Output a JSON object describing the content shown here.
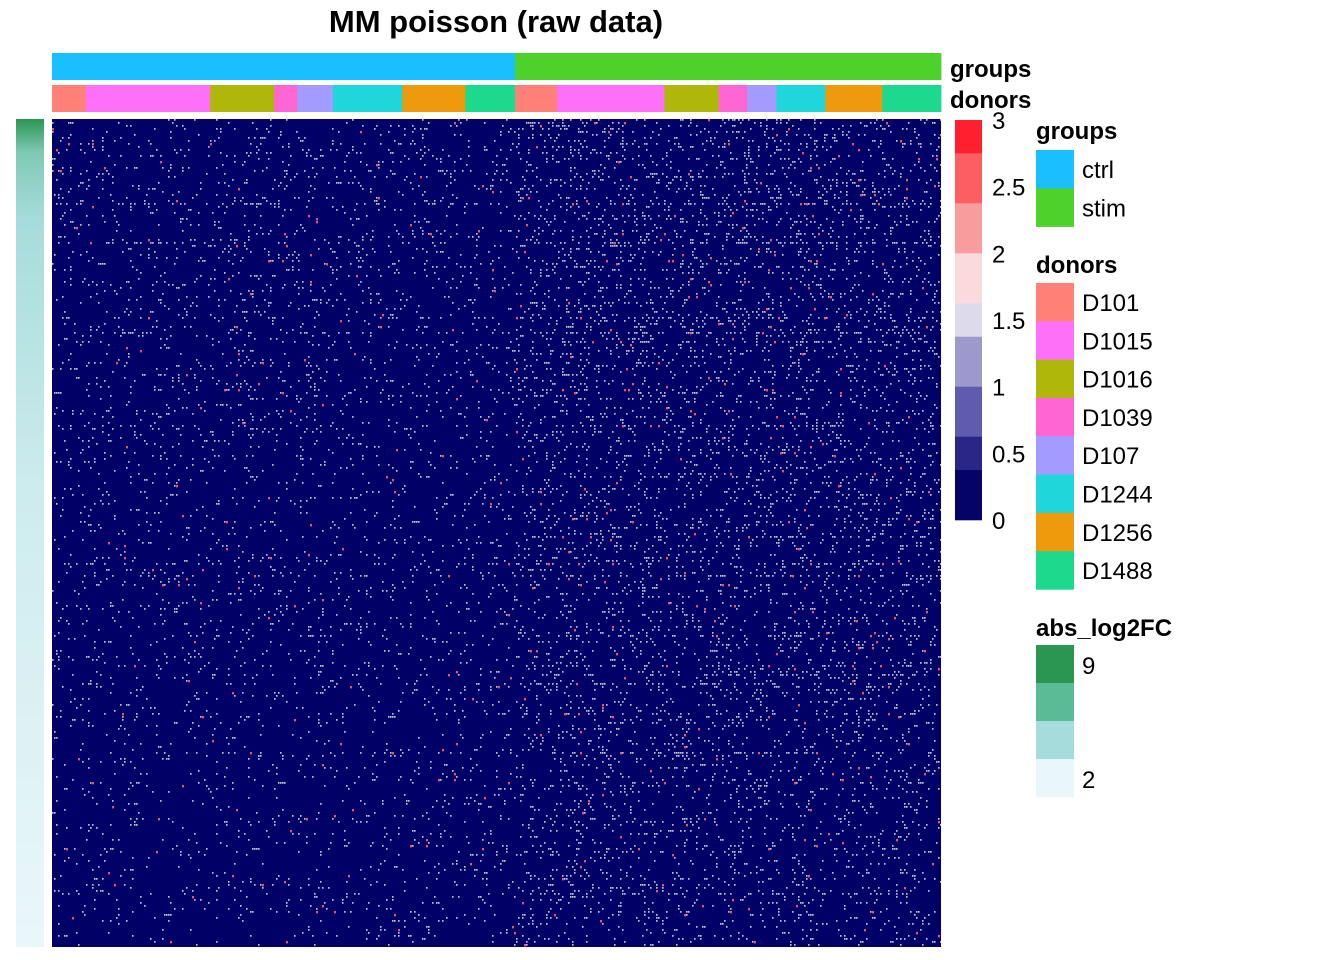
{
  "chart_data": {
    "type": "heatmap",
    "title": "MM poisson (raw data)",
    "column_annotations": [
      {
        "name": "groups",
        "segments": [
          {
            "label": "ctrl",
            "start": 0,
            "end": 0.521
          },
          {
            "label": "stim",
            "start": 0.521,
            "end": 1
          }
        ]
      },
      {
        "name": "donors",
        "segments": [
          {
            "label": "D101",
            "start": 0,
            "end": 0.038
          },
          {
            "label": "D1015",
            "start": 0.038,
            "end": 0.178
          },
          {
            "label": "D1016",
            "start": 0.178,
            "end": 0.25
          },
          {
            "label": "D1039",
            "start": 0.25,
            "end": 0.276
          },
          {
            "label": "D107",
            "start": 0.276,
            "end": 0.316
          },
          {
            "label": "D1244",
            "start": 0.316,
            "end": 0.394
          },
          {
            "label": "D1256",
            "start": 0.394,
            "end": 0.465
          },
          {
            "label": "D1488",
            "start": 0.465,
            "end": 0.521
          },
          {
            "label": "D101",
            "start": 0.521,
            "end": 0.568
          },
          {
            "label": "D1015",
            "start": 0.568,
            "end": 0.689
          },
          {
            "label": "D1016",
            "start": 0.689,
            "end": 0.75
          },
          {
            "label": "D1039",
            "start": 0.75,
            "end": 0.782
          },
          {
            "label": "D107",
            "start": 0.782,
            "end": 0.815
          },
          {
            "label": "D1244",
            "start": 0.815,
            "end": 0.87
          },
          {
            "label": "D1256",
            "start": 0.87,
            "end": 0.934
          },
          {
            "label": "D1488",
            "start": 0.934,
            "end": 1
          }
        ]
      }
    ],
    "row_annotation": {
      "name": "abs_log2FC",
      "range": [
        2,
        9
      ],
      "direction": "descending"
    },
    "value_scale": {
      "range": [
        0,
        3
      ],
      "breaks": [
        "3",
        "2.5",
        "2",
        "1.5",
        "1",
        "0.5",
        "0"
      ],
      "bins": [
        {
          "from": 2.75,
          "to": 3.0,
          "color": "#FF1F2E"
        },
        {
          "from": 2.375,
          "to": 2.75,
          "color": "#FC5E62"
        },
        {
          "from": 2.0,
          "to": 2.375,
          "color": "#F99C9D"
        },
        {
          "from": 1.625,
          "to": 2.0,
          "color": "#FADADB"
        },
        {
          "from": 1.375,
          "to": 1.625,
          "color": "#DDDBEB"
        },
        {
          "from": 1.0,
          "to": 1.375,
          "color": "#9D9ACB"
        },
        {
          "from": 0.625,
          "to": 1.0,
          "color": "#5F5BAD"
        },
        {
          "from": 0.375,
          "to": 0.625,
          "color": "#2A2688"
        },
        {
          "from": 0.0,
          "to": 0.375,
          "color": "#050366"
        }
      ]
    },
    "matrix_summary": {
      "background_value": 0,
      "background_color": "#000066",
      "speckle_color": "#FFFFFF",
      "accent_color": "#FF6070",
      "ctrl_density": 0.06,
      "stim_density": 0.12
    }
  },
  "legends": {
    "groups": {
      "title": "groups",
      "items": [
        {
          "label": "ctrl",
          "color": "#1ABFFF"
        },
        {
          "label": "stim",
          "color": "#4FD12B"
        }
      ]
    },
    "donors": {
      "title": "donors",
      "items": [
        {
          "label": "D101",
          "color": "#FF8077"
        },
        {
          "label": "D1015",
          "color": "#FF70F8"
        },
        {
          "label": "D1016",
          "color": "#B0B70B"
        },
        {
          "label": "D1039",
          "color": "#FF66D4"
        },
        {
          "label": "D107",
          "color": "#A39BFF"
        },
        {
          "label": "D1244",
          "color": "#1FD6DA"
        },
        {
          "label": "D1256",
          "color": "#EF9A0D"
        },
        {
          "label": "D1488",
          "color": "#1CD98E"
        }
      ]
    },
    "abs_log2FC": {
      "title": "abs_log2FC",
      "max_label": "9",
      "min_label": "2",
      "colors": [
        "#2A9651",
        "#5BBB96",
        "#A6DCDB",
        "#EAF7FA"
      ]
    }
  }
}
